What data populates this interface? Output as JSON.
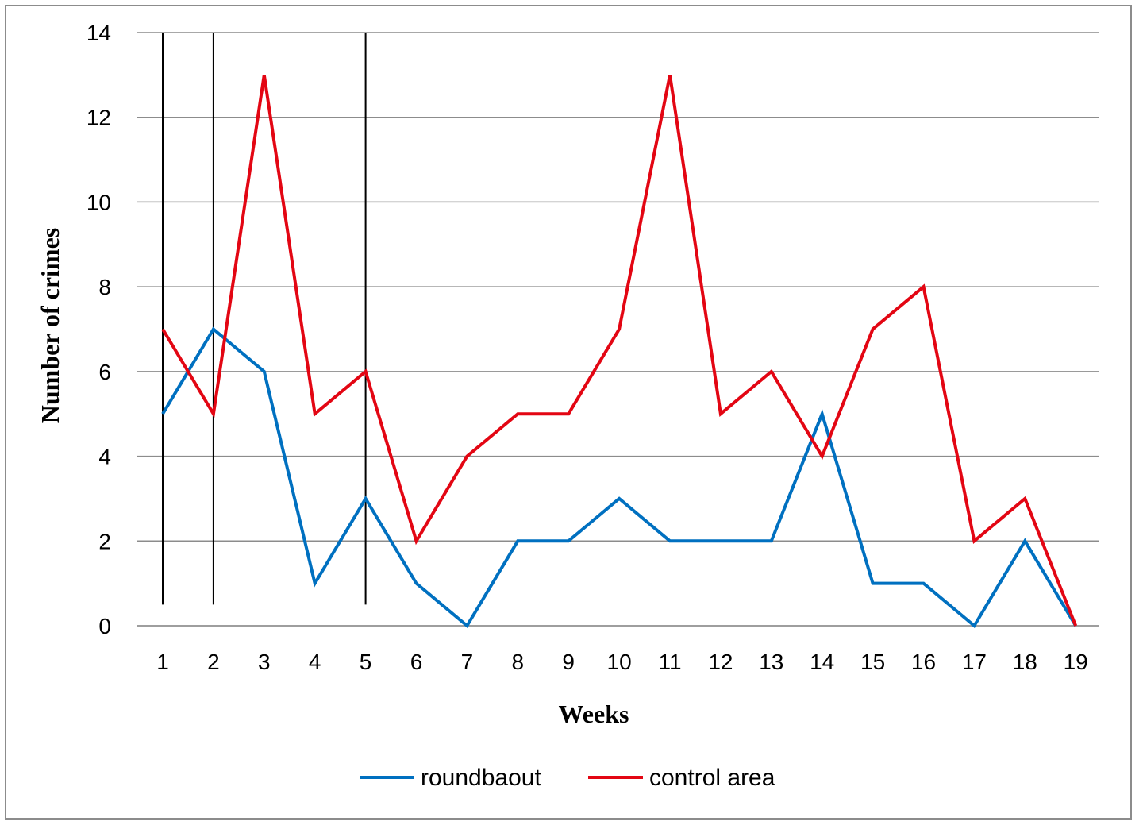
{
  "chart_data": {
    "type": "line",
    "title": "",
    "xlabel": "Weeks",
    "ylabel": "Number of crimes",
    "categories": [
      "1",
      "2",
      "3",
      "4",
      "5",
      "6",
      "7",
      "8",
      "9",
      "10",
      "11",
      "12",
      "13",
      "14",
      "15",
      "16",
      "17",
      "18",
      "19"
    ],
    "ylim": [
      0,
      14
    ],
    "yticks": [
      "0",
      "2",
      "4",
      "6",
      "8",
      "10",
      "12",
      "14"
    ],
    "grid": true,
    "legend_position": "bottom",
    "marker_lines_at_weeks": [
      1,
      2,
      5
    ],
    "series": [
      {
        "name": "roundbaout",
        "color": "#0070C0",
        "values": [
          5,
          7,
          6,
          1,
          3,
          1,
          0,
          2,
          2,
          3,
          2,
          2,
          2,
          5,
          1,
          1,
          0,
          2,
          0
        ]
      },
      {
        "name": "control area",
        "color": "#E30613",
        "values": [
          7,
          5,
          13,
          5,
          6,
          2,
          4,
          5,
          5,
          7,
          13,
          5,
          6,
          4,
          7,
          8,
          2,
          3,
          0
        ]
      }
    ]
  }
}
